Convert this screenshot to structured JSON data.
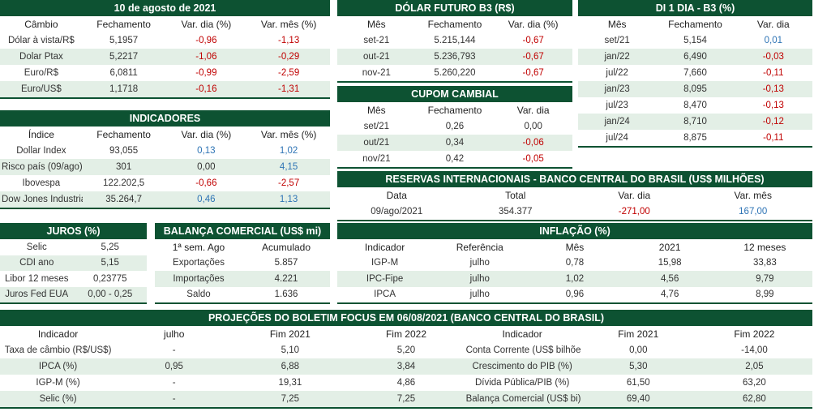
{
  "tables": [
    {
      "title": "10 de agosto de 2021",
      "header": [
        "Câmbio",
        "Fechamento",
        "Var. dia (%)",
        "Var. mês (%)"
      ],
      "colored_columns": [
        2,
        3
      ],
      "rows": [
        [
          "Dólar à vista/R$",
          "5,1957",
          "-0,96",
          "-1,13"
        ],
        [
          "Dolar Ptax",
          "5,2217",
          "-1,06",
          "-0,29"
        ],
        [
          "Euro/R$",
          "6,0811",
          "-0,99",
          "-2,59"
        ],
        [
          "Euro/US$",
          "1,1718",
          "-0,16",
          "-1,31"
        ]
      ]
    },
    {
      "title": "DÓLAR FUTURO B3 (R$)",
      "header": [
        "Mês",
        "Fechamento",
        "Var. dia (%)"
      ],
      "colored_columns": [
        2
      ],
      "rows": [
        [
          "set-21",
          "5.215,144",
          "-0,67"
        ],
        [
          "out-21",
          "5.236,793",
          "-0,67"
        ],
        [
          "nov-21",
          "5.260,220",
          "-0,67"
        ]
      ]
    },
    {
      "title": "DI 1 DIA - B3 (%)",
      "header": [
        "Mês",
        "Fechamento",
        "Var. dia"
      ],
      "colored_columns": [
        2
      ],
      "rows": [
        [
          "set/21",
          "5,154",
          "0,01"
        ],
        [
          "jan/22",
          "6,490",
          "-0,03"
        ],
        [
          "jul/22",
          "7,660",
          "-0,11"
        ],
        [
          "jan/23",
          "8,095",
          "-0,13"
        ],
        [
          "jul/23",
          "8,470",
          "-0,13"
        ],
        [
          "jan/24",
          "8,710",
          "-0,12"
        ],
        [
          "jul/24",
          "8,875",
          "-0,11"
        ]
      ]
    },
    {
      "title": "CUPOM CAMBIAL",
      "header": [
        "Mês",
        "Fechamento",
        "Var. dia"
      ],
      "colored_columns": [
        2
      ],
      "rows": [
        [
          "set/21",
          "0,26",
          "0,00"
        ],
        [
          "out/21",
          "0,34",
          "-0,06"
        ],
        [
          "nov/21",
          "0,42",
          "-0,05"
        ]
      ]
    },
    {
      "title": "INDICADORES",
      "header": [
        "Índice",
        "Fechamento",
        "Var. dia (%)",
        "Var. mês (%)"
      ],
      "colored_columns": [
        2,
        3
      ],
      "rows": [
        [
          "Dollar Index",
          "93,055",
          "0,13",
          "1,02"
        ],
        [
          "Risco país (09/ago)",
          "301",
          "0,00",
          "4,15"
        ],
        [
          "Ibovespa",
          "122.202,5",
          "-0,66",
          "-2,57"
        ],
        [
          "Dow Jones Industrial",
          "35.264,7",
          "0,46",
          "1,13"
        ]
      ]
    },
    {
      "title": "RESERVAS INTERNACIONAIS - BANCO CENTRAL DO BRASIL (US$ MILHÕES)",
      "header": [
        "Data",
        "Total",
        "Var. dia",
        "Var. mês"
      ],
      "colored_columns": [
        2,
        3
      ],
      "rows": [
        [
          "09/ago/2021",
          "354.377",
          "-271,00",
          "167,00"
        ]
      ]
    },
    {
      "title": "JUROS (%)",
      "header": [],
      "colored_columns": [],
      "rows": [
        [
          "Selic",
          "5,25"
        ],
        [
          "CDI ano",
          "5,15"
        ],
        [
          "Libor 12 meses",
          "0,23775"
        ],
        [
          "Juros Fed EUA",
          "0,00 - 0,25"
        ]
      ]
    },
    {
      "title": "BALANÇA COMERCIAL (US$ mi)",
      "header": [
        "1ª sem. Ago",
        "Acumulado"
      ],
      "colored_columns": [],
      "rows": [
        [
          "Exportações",
          "5.857"
        ],
        [
          "Importações",
          "4.221"
        ],
        [
          "Saldo",
          "1.636"
        ]
      ]
    },
    {
      "title": "INFLAÇÃO (%)",
      "header": [
        "Indicador",
        "Referência",
        "Mês",
        "2021",
        "12 meses"
      ],
      "colored_columns": [],
      "rows": [
        [
          "IGP-M",
          "julho",
          "0,78",
          "15,98",
          "33,83"
        ],
        [
          "IPC-Fipe",
          "julho",
          "1,02",
          "4,56",
          "9,79"
        ],
        [
          "IPCA",
          "julho",
          "0,96",
          "4,76",
          "8,99"
        ]
      ]
    },
    {
      "title": "PROJEÇÕES DO BOLETIM FOCUS EM 06/08/2021 (BANCO CENTRAL DO BRASIL)",
      "header": [
        "Indicador",
        "julho",
        "Fim 2021",
        "Fim 2022",
        "Indicador",
        "Fim 2021",
        "Fim 2022"
      ],
      "colored_columns": [],
      "rows": [
        [
          "Taxa de câmbio (R$/US$)",
          "-",
          "5,10",
          "5,20",
          "Conta Corrente (US$ bilhões)",
          "0,00",
          "-14,00"
        ],
        [
          "IPCA (%)",
          "0,95",
          "6,88",
          "3,84",
          "Crescimento do PIB (%)",
          "5,30",
          "2,05"
        ],
        [
          "IGP-M (%)",
          "-",
          "19,31",
          "4,86",
          "Dívida Pública/PIB (%)",
          "61,50",
          "63,20"
        ],
        [
          "Selic (%)",
          "-",
          "7,25",
          "7,25",
          "Balança Comercial (US$ bi)",
          "69,40",
          "62,80"
        ]
      ]
    }
  ]
}
